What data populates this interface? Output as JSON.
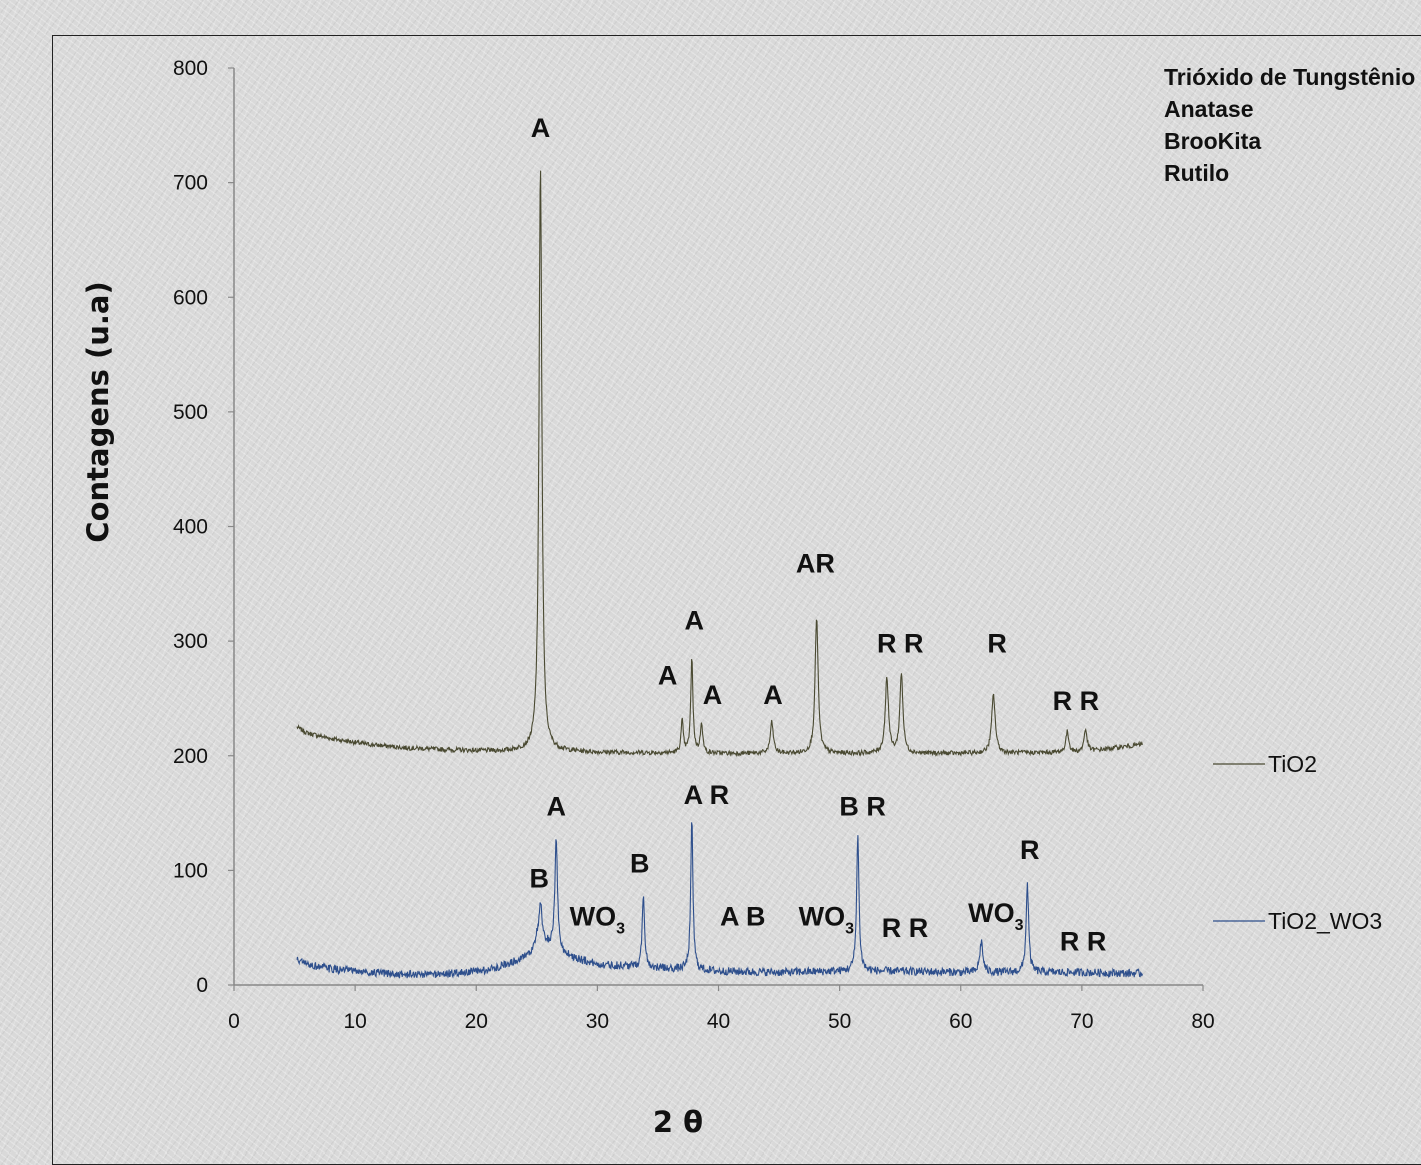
{
  "chart_data": {
    "type": "line",
    "title": "",
    "xlabel": "2 θ",
    "ylabel": "Contagens (u.a)",
    "xlim": [
      0,
      80
    ],
    "ylim": [
      0,
      800
    ],
    "x_ticks": [
      "0",
      "10",
      "20",
      "30",
      "40",
      "50",
      "60",
      "70",
      "80"
    ],
    "y_ticks": [
      "0",
      "100",
      "200",
      "300",
      "400",
      "500",
      "600",
      "700",
      "800"
    ],
    "grid": false,
    "legend_placement": "right",
    "phase_legend": [
      "Trióxido de Tungstênio",
      "Anatase",
      "BrooKita",
      "Rutilo"
    ],
    "series": [
      {
        "name": "TiO2",
        "color": "#4a4a32",
        "x_range": [
          5.2,
          75
        ],
        "baseline": [
          [
            5.2,
            225
          ],
          [
            6,
            220
          ],
          [
            8,
            215
          ],
          [
            11,
            210
          ],
          [
            14,
            207
          ],
          [
            18,
            205
          ],
          [
            22,
            204
          ],
          [
            25,
            205
          ],
          [
            30,
            203
          ],
          [
            40,
            202
          ],
          [
            50,
            202
          ],
          [
            60,
            202
          ],
          [
            70,
            203
          ],
          [
            75,
            210
          ]
        ],
        "peaks": [
          {
            "x": 25.3,
            "y": 717,
            "w": 0.28
          },
          {
            "x": 37.0,
            "y": 230,
            "w": 0.22
          },
          {
            "x": 37.8,
            "y": 284,
            "w": 0.22
          },
          {
            "x": 38.6,
            "y": 229,
            "w": 0.22
          },
          {
            "x": 44.4,
            "y": 229,
            "w": 0.3
          },
          {
            "x": 48.1,
            "y": 321,
            "w": 0.3
          },
          {
            "x": 53.9,
            "y": 268,
            "w": 0.32
          },
          {
            "x": 55.1,
            "y": 272,
            "w": 0.3
          },
          {
            "x": 62.7,
            "y": 253,
            "w": 0.35
          },
          {
            "x": 68.8,
            "y": 221,
            "w": 0.3
          },
          {
            "x": 70.3,
            "y": 223,
            "w": 0.3
          }
        ]
      },
      {
        "name": "TiO2_WO3",
        "color": "#2e4f8c",
        "x_range": [
          5.2,
          75
        ],
        "baseline": [
          [
            5.2,
            22
          ],
          [
            6,
            18
          ],
          [
            8,
            14
          ],
          [
            11,
            11
          ],
          [
            14,
            9
          ],
          [
            18,
            10
          ],
          [
            21,
            13
          ],
          [
            23,
            20
          ],
          [
            24.5,
            28
          ],
          [
            25,
            40
          ],
          [
            26,
            35
          ],
          [
            27,
            28
          ],
          [
            28,
            24
          ],
          [
            30,
            18
          ],
          [
            33,
            16
          ],
          [
            36,
            14
          ],
          [
            40,
            12
          ],
          [
            45,
            11
          ],
          [
            50,
            12
          ],
          [
            55,
            12
          ],
          [
            60,
            11
          ],
          [
            65,
            11
          ],
          [
            70,
            11
          ],
          [
            75,
            10
          ]
        ],
        "peaks": [
          {
            "x": 25.3,
            "y": 71,
            "w": 0.28
          },
          {
            "x": 26.6,
            "y": 130,
            "w": 0.25
          },
          {
            "x": 33.8,
            "y": 78,
            "w": 0.24
          },
          {
            "x": 37.8,
            "y": 143,
            "w": 0.22
          },
          {
            "x": 51.5,
            "y": 130,
            "w": 0.24
          },
          {
            "x": 61.7,
            "y": 38,
            "w": 0.3
          },
          {
            "x": 65.5,
            "y": 88,
            "w": 0.25
          }
        ]
      }
    ],
    "annotations": [
      {
        "text": "A",
        "x": 25.3,
        "y": 740
      },
      {
        "text": "AR",
        "x": 48.0,
        "y": 360
      },
      {
        "text": "A",
        "x": 38.0,
        "y": 310
      },
      {
        "text": "A",
        "x": 35.8,
        "y": 262
      },
      {
        "text": "A",
        "x": 39.5,
        "y": 245
      },
      {
        "text": "A",
        "x": 44.5,
        "y": 245
      },
      {
        "text": "R  R",
        "x": 55.0,
        "y": 290
      },
      {
        "text": "R",
        "x": 63.0,
        "y": 290
      },
      {
        "text": "R R",
        "x": 69.5,
        "y": 240
      },
      {
        "text": "A",
        "x": 26.6,
        "y": 148
      },
      {
        "text": "A R",
        "x": 39.0,
        "y": 158
      },
      {
        "text": "B R",
        "x": 51.9,
        "y": 148
      },
      {
        "text": "R",
        "x": 65.7,
        "y": 110
      },
      {
        "text": "B",
        "x": 25.2,
        "y": 85
      },
      {
        "text": "B",
        "x": 33.5,
        "y": 98
      },
      {
        "text": "WO3",
        "x": 30.0,
        "y": 52
      },
      {
        "text": "A B",
        "x": 42.0,
        "y": 52
      },
      {
        "text": "WO3",
        "x": 48.9,
        "y": 52
      },
      {
        "text": "R R",
        "x": 55.4,
        "y": 42
      },
      {
        "text": "WO3",
        "x": 62.9,
        "y": 55
      },
      {
        "text": "R R",
        "x": 70.1,
        "y": 30
      }
    ]
  }
}
